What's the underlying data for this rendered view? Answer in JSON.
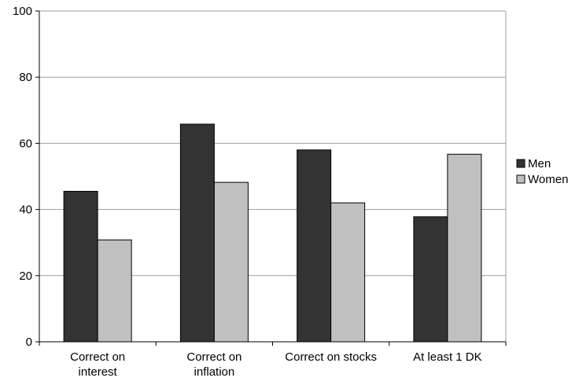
{
  "chart_data": {
    "type": "bar",
    "title": "",
    "xlabel": "",
    "ylabel": "",
    "categories": [
      [
        "Correct on",
        "interest"
      ],
      [
        "Correct on",
        "inflation"
      ],
      [
        "Correct on stocks"
      ],
      [
        "At least 1 DK"
      ]
    ],
    "series": [
      {
        "name": "Men",
        "color": "#333333",
        "values": [
          45.5,
          65.8,
          58.0,
          37.8
        ]
      },
      {
        "name": "Women",
        "color": "#c0c0c0",
        "values": [
          30.8,
          48.2,
          42.0,
          56.7
        ]
      }
    ],
    "ylim": [
      0,
      100
    ],
    "yticks": [
      0,
      20,
      40,
      60,
      80,
      100
    ],
    "grid": true,
    "legend_position": "right"
  }
}
